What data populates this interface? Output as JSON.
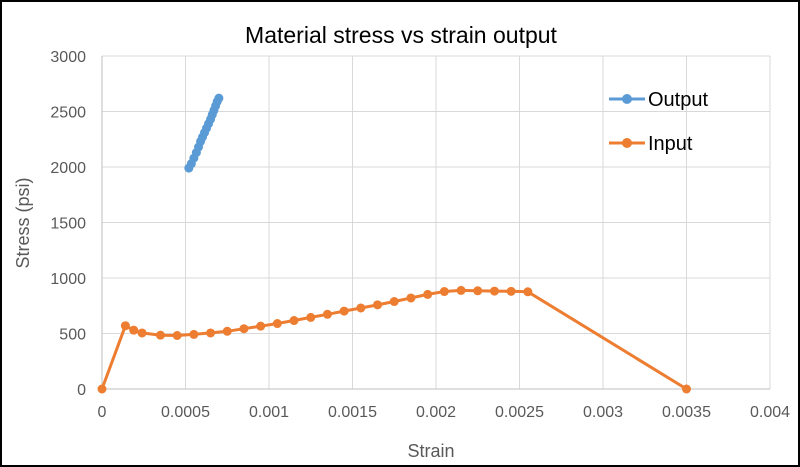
{
  "chart_data": {
    "type": "scatter",
    "title": "Material stress vs strain output",
    "xlabel": "Strain",
    "ylabel": "Stress (psi)",
    "xlim": [
      0,
      0.004
    ],
    "ylim": [
      0,
      3000
    ],
    "x_ticks": [
      0,
      0.0005,
      0.001,
      0.0015,
      0.002,
      0.0025,
      0.003,
      0.0035,
      0.004
    ],
    "x_tick_labels": [
      "0",
      "0.0005",
      "0.001",
      "0.0015",
      "0.002",
      "0.0025",
      "0.003",
      "0.0035",
      "0.004"
    ],
    "y_ticks": [
      0,
      500,
      1000,
      1500,
      2000,
      2500,
      3000
    ],
    "y_tick_labels": [
      "0",
      "500",
      "1000",
      "1500",
      "2000",
      "2500",
      "3000"
    ],
    "grid": true,
    "legend_position": "top-right",
    "series": [
      {
        "name": "Output",
        "color": "#5B9BD5",
        "points": [
          [
            0.00052,
            1990
          ],
          [
            0.000535,
            2030
          ],
          [
            0.00055,
            2080
          ],
          [
            0.000565,
            2130
          ],
          [
            0.000578,
            2180
          ],
          [
            0.00059,
            2230
          ],
          [
            0.000602,
            2270
          ],
          [
            0.000614,
            2310
          ],
          [
            0.000626,
            2350
          ],
          [
            0.000638,
            2390
          ],
          [
            0.00065,
            2430
          ],
          [
            0.00066,
            2470
          ],
          [
            0.00067,
            2510
          ],
          [
            0.00068,
            2550
          ],
          [
            0.00069,
            2590
          ],
          [
            0.0007,
            2620
          ]
        ]
      },
      {
        "name": "Input",
        "color": "#ED7D31",
        "points": [
          [
            0,
            0
          ],
          [
            0.00014,
            570
          ],
          [
            0.00019,
            530
          ],
          [
            0.00024,
            505
          ],
          [
            0.00035,
            485
          ],
          [
            0.00045,
            482
          ],
          [
            0.00055,
            492
          ],
          [
            0.00065,
            505
          ],
          [
            0.00075,
            520
          ],
          [
            0.00085,
            543
          ],
          [
            0.00095,
            566
          ],
          [
            0.00105,
            590
          ],
          [
            0.00115,
            617
          ],
          [
            0.00125,
            645
          ],
          [
            0.00135,
            673
          ],
          [
            0.00145,
            702
          ],
          [
            0.00155,
            730
          ],
          [
            0.00165,
            758
          ],
          [
            0.00175,
            788
          ],
          [
            0.00185,
            820
          ],
          [
            0.00195,
            852
          ],
          [
            0.00205,
            878
          ],
          [
            0.00215,
            888
          ],
          [
            0.00225,
            885
          ],
          [
            0.00235,
            882
          ],
          [
            0.00245,
            880
          ],
          [
            0.00255,
            876
          ],
          [
            0.0035,
            0
          ]
        ]
      }
    ]
  }
}
